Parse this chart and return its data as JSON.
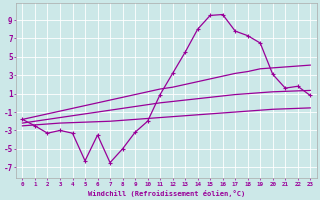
{
  "xlabel": "Windchill (Refroidissement éolien,°C)",
  "background_color": "#cce8e8",
  "grid_color": "#aacccc",
  "line_color": "#990099",
  "x_ticks": [
    0,
    1,
    2,
    3,
    4,
    5,
    6,
    7,
    8,
    9,
    10,
    11,
    12,
    13,
    14,
    15,
    16,
    17,
    18,
    19,
    20,
    21,
    22,
    23
  ],
  "y_ticks": [
    -7,
    -5,
    -3,
    -1,
    1,
    3,
    5,
    7,
    9
  ],
  "ylim": [
    -8.2,
    10.8
  ],
  "xlim": [
    -0.5,
    23.5
  ],
  "main_line_y": [
    -1.8,
    -2.5,
    -3.3,
    -3.0,
    -3.3,
    -6.3,
    -3.5,
    -6.5,
    -5.0,
    -3.2,
    -2.0,
    0.9,
    3.2,
    5.5,
    8.0,
    9.5,
    9.6,
    7.8,
    7.3,
    6.5,
    3.1,
    1.6,
    1.8,
    0.8
  ],
  "line_upper_y": [
    -1.8,
    -1.5,
    -1.2,
    -0.9,
    -0.6,
    -0.3,
    0.0,
    0.3,
    0.6,
    0.9,
    1.2,
    1.5,
    1.7,
    2.0,
    2.3,
    2.6,
    2.9,
    3.2,
    3.4,
    3.7,
    3.8,
    3.9,
    4.0,
    4.1
  ],
  "line_mid_y": [
    -2.2,
    -2.0,
    -1.8,
    -1.6,
    -1.4,
    -1.2,
    -1.0,
    -0.8,
    -0.6,
    -0.4,
    -0.2,
    0.0,
    0.15,
    0.3,
    0.45,
    0.6,
    0.75,
    0.9,
    1.0,
    1.1,
    1.2,
    1.25,
    1.3,
    1.35
  ],
  "line_lower_y": [
    -2.5,
    -2.4,
    -2.3,
    -2.2,
    -2.15,
    -2.1,
    -2.05,
    -2.0,
    -1.9,
    -1.8,
    -1.7,
    -1.6,
    -1.5,
    -1.4,
    -1.3,
    -1.2,
    -1.1,
    -1.0,
    -0.9,
    -0.8,
    -0.7,
    -0.65,
    -0.6,
    -0.55
  ]
}
